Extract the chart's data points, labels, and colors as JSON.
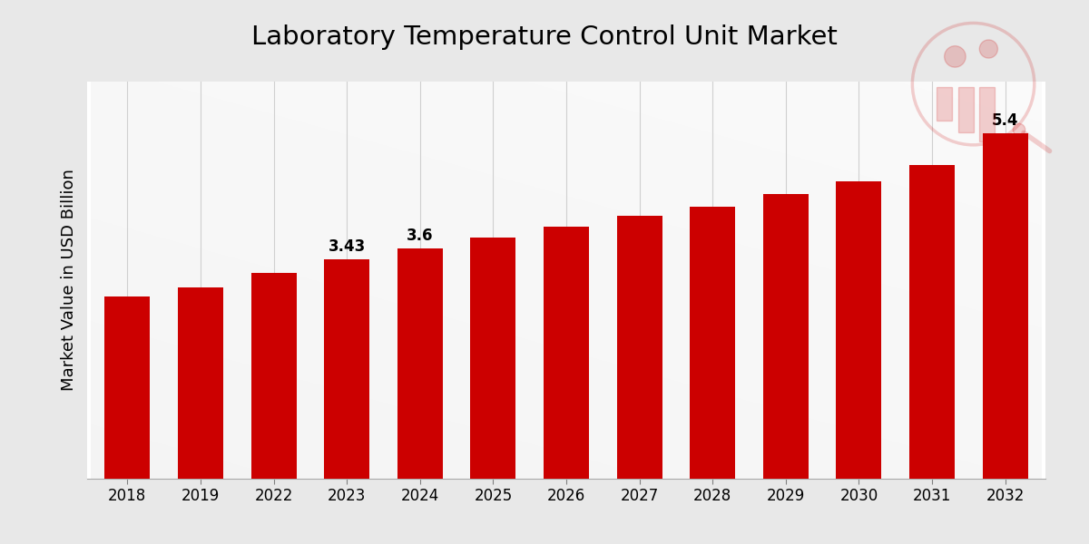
{
  "categories": [
    "2018",
    "2019",
    "2022",
    "2023",
    "2024",
    "2025",
    "2026",
    "2027",
    "2028",
    "2029",
    "2030",
    "2031",
    "2032"
  ],
  "values": [
    2.85,
    2.98,
    3.22,
    3.43,
    3.6,
    3.76,
    3.93,
    4.1,
    4.25,
    4.45,
    4.65,
    4.9,
    5.4
  ],
  "labeled_indices": [
    3,
    4,
    12
  ],
  "labels": [
    "3.43",
    "3.6",
    "5.4"
  ],
  "bar_color": "#CC0000",
  "title": "Laboratory Temperature Control Unit Market",
  "ylabel": "Market Value in USD Billion",
  "title_fontsize": 21,
  "label_fontsize": 12,
  "ylabel_fontsize": 13,
  "xtick_fontsize": 12,
  "bg_color": "#e8e8e8",
  "axes_bg_color": "#ebebeb",
  "grid_color": "#cccccc",
  "ylim": [
    0,
    6.2
  ],
  "bar_width": 0.62,
  "logo_color": "#cc0000",
  "logo_alpha": 0.18,
  "bottom_bar_color": "#cc0000"
}
